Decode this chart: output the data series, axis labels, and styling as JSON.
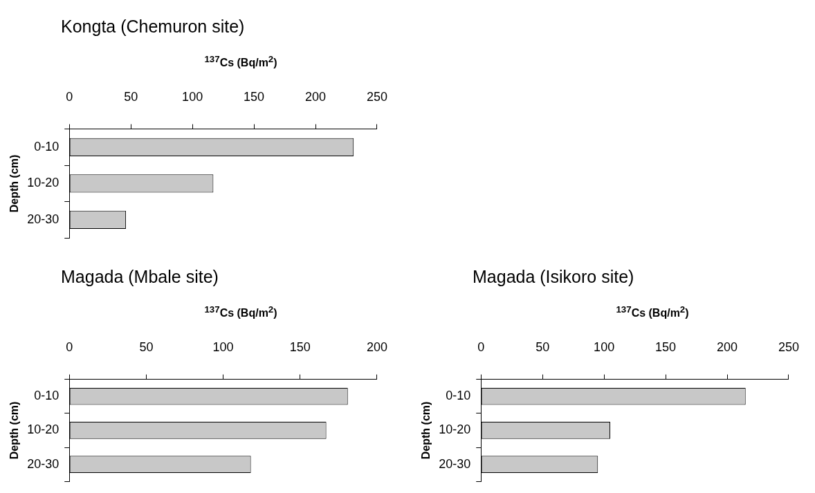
{
  "chart_data": [
    {
      "type": "bar",
      "orientation": "horizontal",
      "title": "Kongta (Chemuron site)",
      "xlabel": "$^{137}$Cs (Bq/m$^{2}$)",
      "ylabel": "Depth (cm)",
      "categories": [
        "0-10",
        "10-20",
        "20-30"
      ],
      "values": [
        231,
        117,
        46
      ],
      "color": "#c8c8c8",
      "xlim": [
        0,
        250
      ],
      "xticks": [
        0,
        50,
        100,
        150,
        200,
        250
      ],
      "grid": false,
      "legend": false
    },
    {
      "type": "bar",
      "orientation": "horizontal",
      "title": "Magada (Mbale site)",
      "xlabel": "$^{137}$Cs (Bq/m$^{2}$)",
      "ylabel": "Depth (cm)",
      "categories": [
        "0-10",
        "10-20",
        "20-30"
      ],
      "values": [
        181,
        167,
        118
      ],
      "color": "#c8c8c8",
      "xlim": [
        0,
        200
      ],
      "xticks": [
        0,
        50,
        100,
        150,
        200
      ],
      "grid": false,
      "legend": false
    },
    {
      "type": "bar",
      "orientation": "horizontal",
      "title": "Magada (Isikoro site)",
      "xlabel": "$^{137}$Cs (Bq/m$^{2}$)",
      "ylabel": "Depth (cm)",
      "categories": [
        "0-10",
        "10-20",
        "20-30"
      ],
      "values": [
        215,
        105,
        95
      ],
      "color": "#c8c8c8",
      "xlim": [
        0,
        250
      ],
      "xticks": [
        0,
        50,
        100,
        150,
        200,
        250
      ],
      "grid": false,
      "legend": false
    }
  ]
}
